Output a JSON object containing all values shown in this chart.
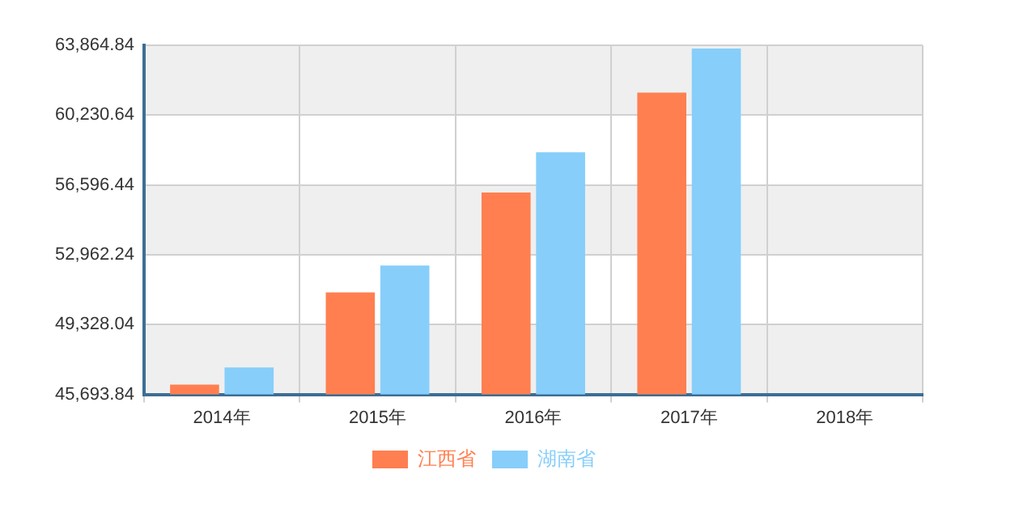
{
  "chart_data": {
    "type": "bar",
    "categories": [
      "2014年",
      "2015年",
      "2016年",
      "2017年",
      "2018年"
    ],
    "series": [
      {
        "name": "江西省",
        "color": "#ff7f50",
        "values": [
          46200,
          51000,
          56200,
          61400,
          null
        ]
      },
      {
        "name": "湖南省",
        "color": "#87cefa",
        "values": [
          47100,
          52400,
          58300,
          63700,
          null
        ]
      }
    ],
    "ylim": [
      45693.84,
      63864.84
    ],
    "yticks": [
      {
        "value": 45693.84,
        "label": "45,693.84"
      },
      {
        "value": 49328.04,
        "label": "49,328.04"
      },
      {
        "value": 52962.24,
        "label": "52,962.24"
      },
      {
        "value": 56596.44,
        "label": "56,596.44"
      },
      {
        "value": 60230.64,
        "label": "60,230.64"
      },
      {
        "value": 63864.84,
        "label": "63,864.84"
      }
    ],
    "grid": true,
    "legend": "bottom"
  }
}
